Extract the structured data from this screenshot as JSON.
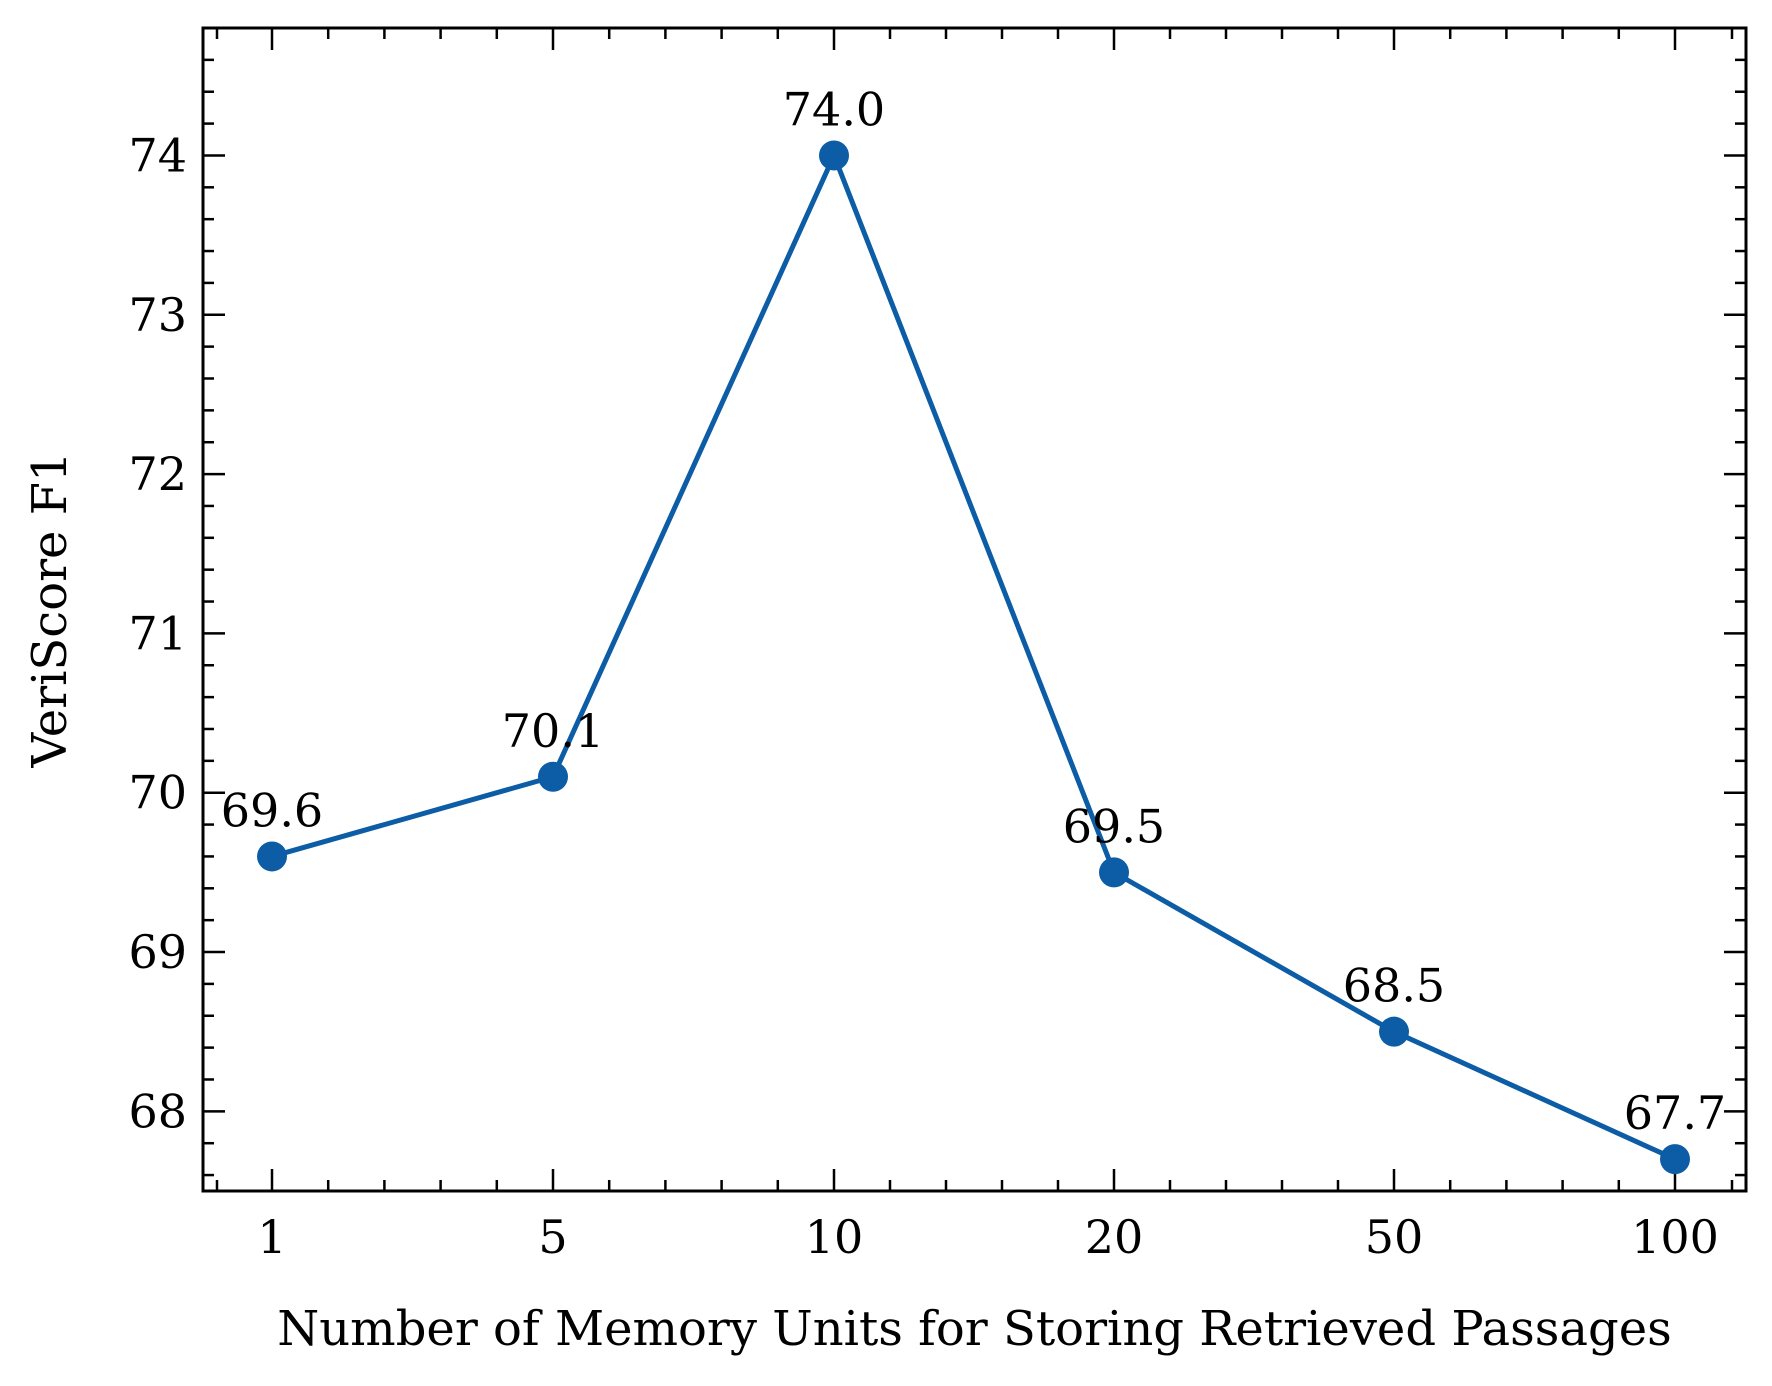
{
  "chart_data": {
    "type": "line",
    "title": "",
    "xlabel": "Number of Memory Units for Storing Retrieved Passages",
    "ylabel": "VeriScore F1",
    "categories": [
      "1",
      "5",
      "10",
      "20",
      "50",
      "100"
    ],
    "series": [
      {
        "name": "",
        "color": "#0C5DA5",
        "values": [
          69.6,
          70.1,
          74.0,
          69.5,
          68.5,
          67.7
        ],
        "labels": [
          "69.6",
          "70.1",
          "74.0",
          "69.5",
          "68.5",
          "67.7"
        ]
      }
    ],
    "ylim": [
      67.5,
      74.8
    ],
    "yticks": [
      68,
      69,
      70,
      71,
      72,
      73,
      74
    ],
    "ytick_labels": [
      "68",
      "69",
      "70",
      "71",
      "72",
      "73",
      "74"
    ],
    "grid": false,
    "legend": "none"
  }
}
